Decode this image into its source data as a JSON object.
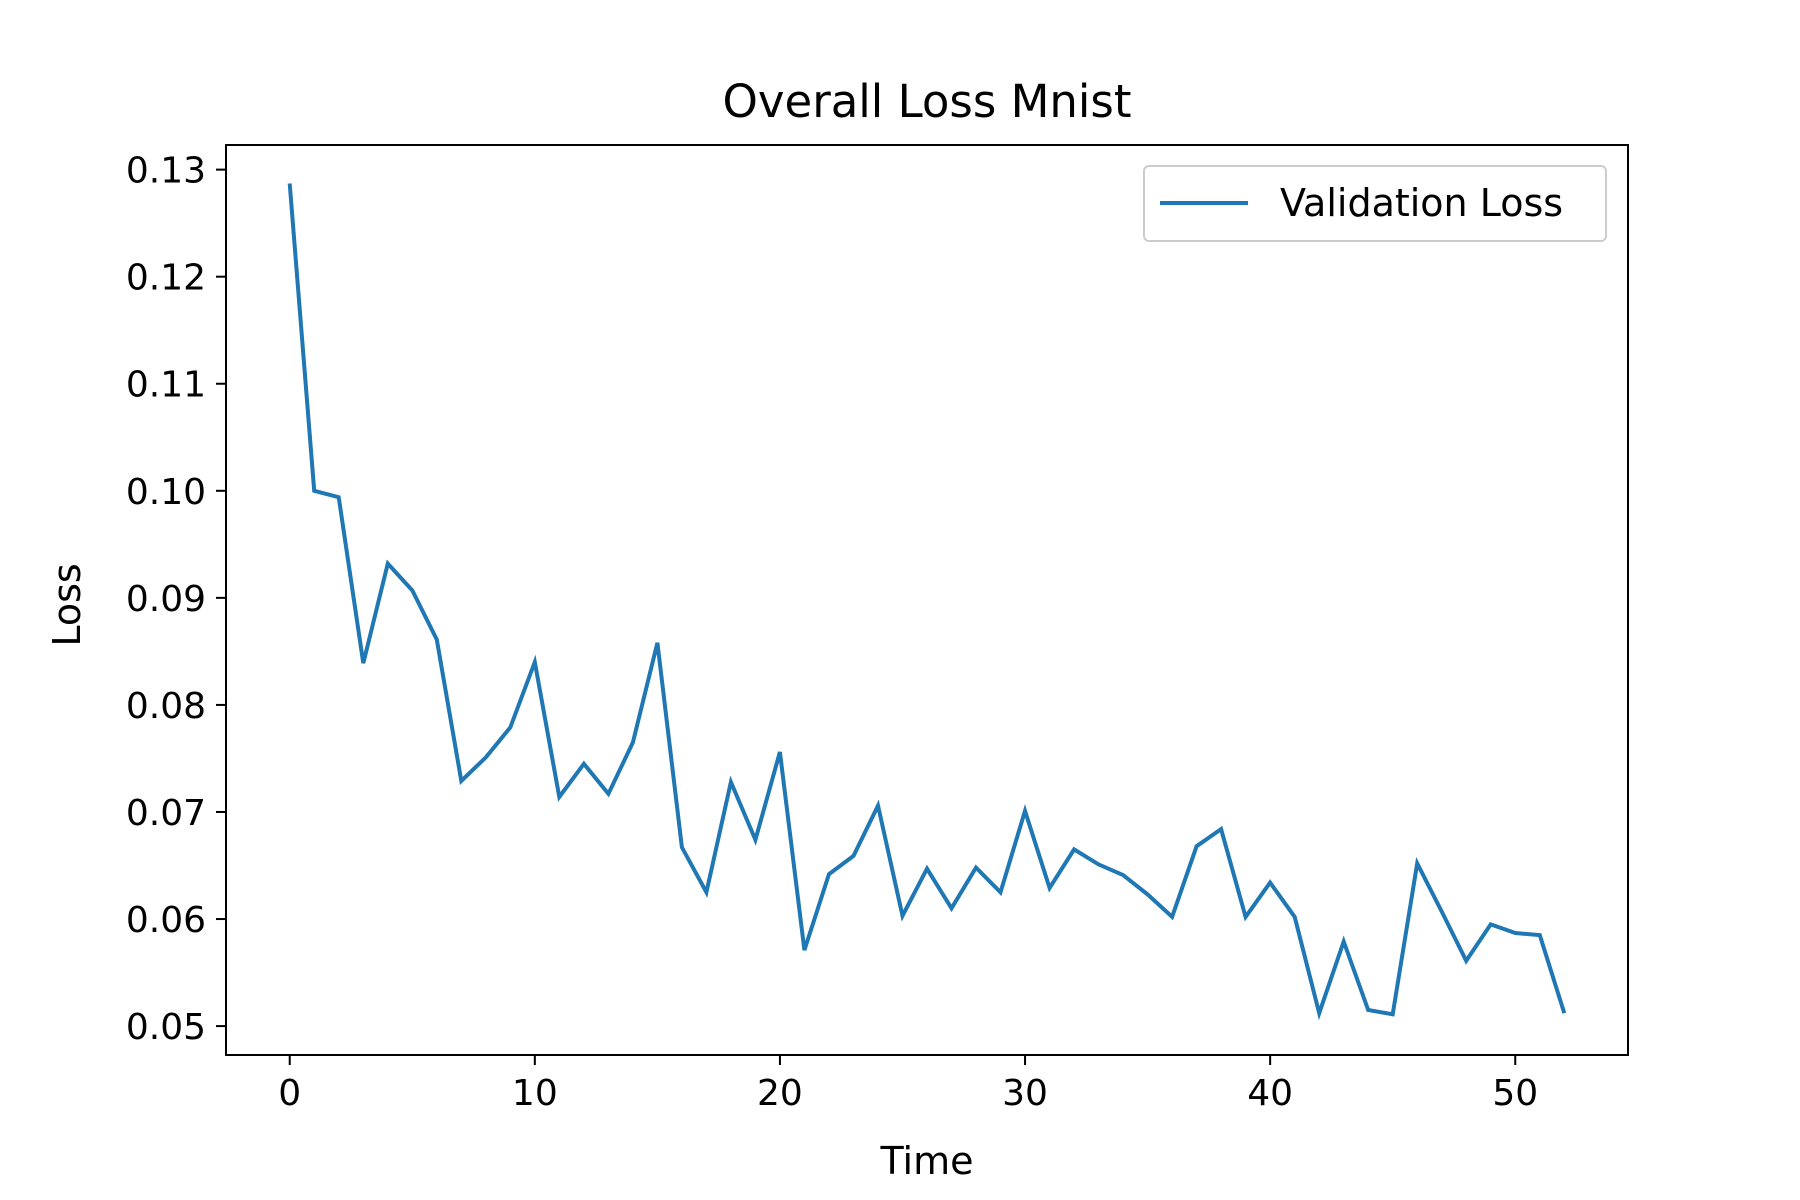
{
  "chart_data": {
    "type": "line",
    "title": "Overall Loss Mnist",
    "xlabel": "Time",
    "ylabel": "Loss",
    "xlim": [
      -2.6,
      54.6
    ],
    "ylim": [
      0.0473,
      0.1323
    ],
    "xticks": [
      0,
      10,
      20,
      30,
      40,
      50
    ],
    "yticks": [
      0.05,
      0.06,
      0.07,
      0.08,
      0.09,
      0.1,
      0.11,
      0.12,
      0.13
    ],
    "xtick_labels": [
      "0",
      "10",
      "20",
      "30",
      "40",
      "50"
    ],
    "ytick_labels": [
      "0.05",
      "0.06",
      "0.07",
      "0.08",
      "0.09",
      "0.10",
      "0.11",
      "0.12",
      "0.13"
    ],
    "grid": false,
    "legend": {
      "placement": "top-right"
    },
    "series": [
      {
        "name": "Validation Loss",
        "color": "#1f77b4",
        "x": [
          0,
          1,
          2,
          3,
          4,
          5,
          6,
          7,
          8,
          9,
          10,
          11,
          12,
          13,
          14,
          15,
          16,
          17,
          18,
          19,
          20,
          21,
          22,
          23,
          24,
          25,
          26,
          27,
          28,
          29,
          30,
          31,
          32,
          33,
          34,
          35,
          36,
          37,
          38,
          39,
          40,
          41,
          42,
          43,
          44,
          45,
          46,
          47,
          48,
          49,
          50,
          51,
          52
        ],
        "values": [
          0.1287,
          0.1,
          0.0994,
          0.0839,
          0.0932,
          0.0907,
          0.0861,
          0.0729,
          0.0751,
          0.0779,
          0.084,
          0.0714,
          0.0745,
          0.0717,
          0.0765,
          0.0858,
          0.0667,
          0.0625,
          0.0728,
          0.0674,
          0.0756,
          0.0571,
          0.0642,
          0.0659,
          0.0706,
          0.0603,
          0.0647,
          0.061,
          0.0648,
          0.0625,
          0.0701,
          0.0629,
          0.0665,
          0.0651,
          0.0641,
          0.0623,
          0.0602,
          0.0668,
          0.0684,
          0.0602,
          0.0634,
          0.0602,
          0.0512,
          0.0579,
          0.0515,
          0.0511,
          0.0652,
          0.0607,
          0.0561,
          0.0595,
          0.0587,
          0.0585,
          0.0512
        ]
      }
    ]
  }
}
